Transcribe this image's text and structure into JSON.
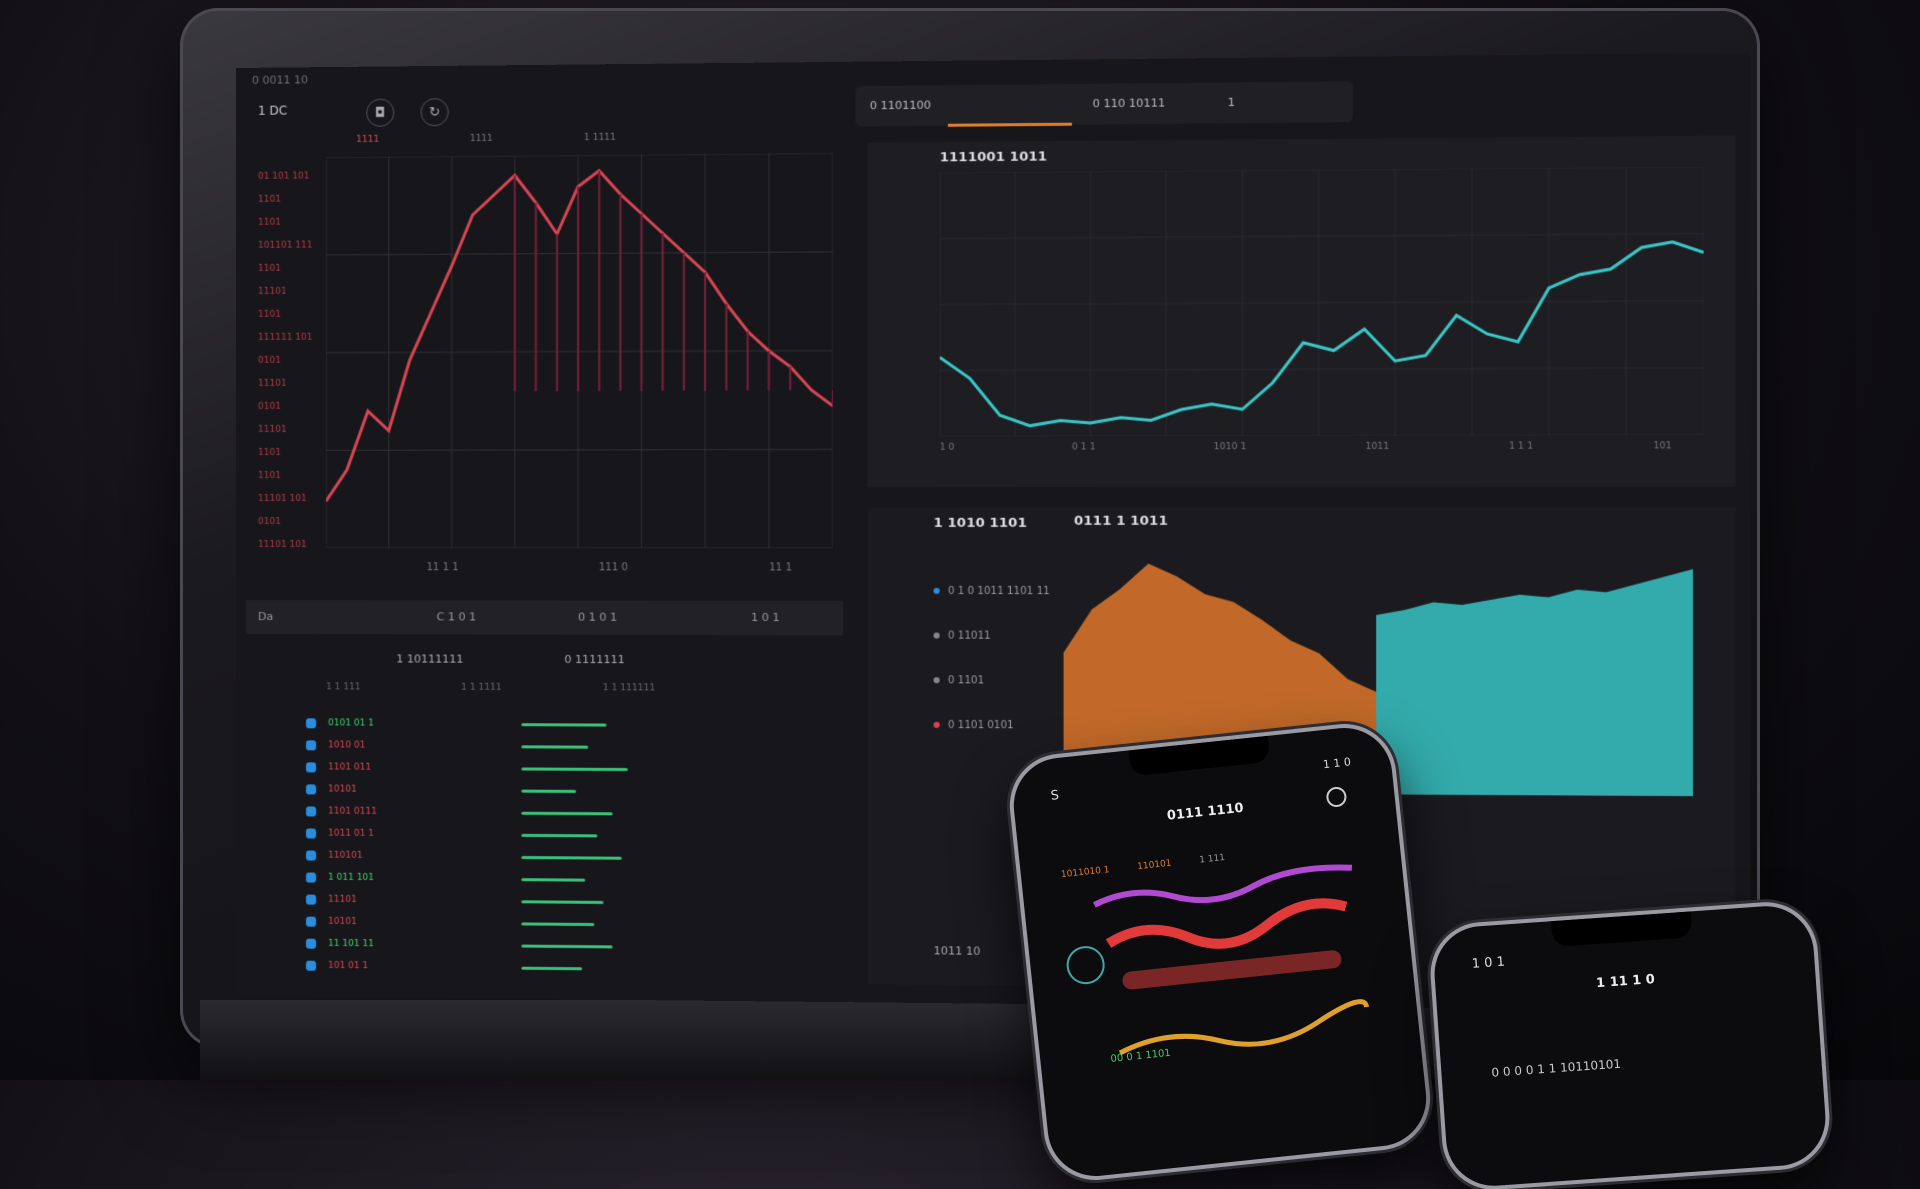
{
  "colors": {
    "red": "#d64651",
    "teal": "#38c6c6",
    "orange": "#e0782c",
    "green": "#3fcf6a",
    "blue": "#2a8ee0"
  },
  "laptop": {
    "topbar": "0 0011 10",
    "left_panel": {
      "title": "1 DC",
      "series_labels": [
        "1111",
        "1111",
        "1 1111"
      ],
      "y_labels": [
        "01 101 101",
        "1101",
        "1101",
        "101101 111",
        "1101",
        "11101",
        "1101",
        "111111 101",
        "0101",
        "11101",
        "0101",
        "11101",
        "1101",
        "1101",
        "11101 101",
        "0101",
        "11101 101"
      ],
      "x_labels": [
        "11 1 1",
        "111 0",
        "11 1"
      ],
      "tabs": [
        "Da",
        "C 1 0 1",
        "0 1 0 1",
        "1 0 1"
      ],
      "table_headings": [
        "1 10111111",
        "0 1111111"
      ],
      "table_subheads": [
        "1 1 111",
        "1 1 1111",
        "1 1 111111"
      ],
      "rows": [
        {
          "name": "0101 01 1",
          "color": "#3fcf6a",
          "bar": 0.28
        },
        {
          "name": "1010 01",
          "color": "#d64651",
          "bar": 0.22
        },
        {
          "name": "1101 011",
          "color": "#d64651",
          "bar": 0.35
        },
        {
          "name": "10101",
          "color": "#d64651",
          "bar": 0.18
        },
        {
          "name": "1101 0111",
          "color": "#d64651",
          "bar": 0.3
        },
        {
          "name": "1011 01 1",
          "color": "#d64651",
          "bar": 0.25
        },
        {
          "name": "110101",
          "color": "#d64651",
          "bar": 0.33
        },
        {
          "name": "1 011 101",
          "color": "#3fcf6a",
          "bar": 0.21
        },
        {
          "name": "11101",
          "color": "#d64651",
          "bar": 0.27
        },
        {
          "name": "10101",
          "color": "#d64651",
          "bar": 0.24
        },
        {
          "name": "11 101 11",
          "color": "#3fcf6a",
          "bar": 0.3
        },
        {
          "name": "101 01 1",
          "color": "#d64651",
          "bar": 0.2
        }
      ]
    },
    "right_panel": {
      "tabs": [
        "0 1101100",
        "0 110 10111",
        "1"
      ],
      "teal_title": "1111001 1011",
      "teal_x_labels": [
        "1 0",
        "0 1 1",
        "1010 1",
        "1011",
        "1 1 1",
        "101"
      ],
      "area_title_left": "1 1010 1101",
      "area_title_right": "0111 1 1011",
      "legend": [
        "0 1 0 1011 1101 11",
        "0 11011",
        "0 1101",
        "0 1101 0101"
      ],
      "footer": "1011 10"
    }
  },
  "phone1": {
    "status_left": "S",
    "status_right": "1 1 0",
    "title": "0111 1110",
    "tabs": [
      "1011010 1",
      "110101",
      "1 111"
    ],
    "green_label": "00 0 1 1101"
  },
  "phone2": {
    "status_left": "1 0 1",
    "title": "1 11 1 0",
    "bottom": "0 0 0 0 1 1 10110101"
  },
  "chart_data": [
    {
      "type": "line",
      "title": "",
      "xlabel": "",
      "ylabel": "",
      "series": [
        {
          "values": [
            12,
            20,
            35,
            30,
            48,
            60,
            72,
            85,
            90,
            95,
            88,
            80,
            92,
            96,
            90,
            85,
            80,
            75,
            70,
            62,
            55,
            50,
            46,
            40,
            36
          ]
        }
      ],
      "ylim": [
        0,
        100
      ]
    },
    {
      "type": "line",
      "title": "",
      "xlabel": "",
      "ylabel": "",
      "series": [
        {
          "values": [
            30,
            22,
            8,
            4,
            6,
            5,
            7,
            6,
            10,
            12,
            10,
            20,
            35,
            32,
            40,
            28,
            30,
            45,
            38,
            35,
            55,
            60,
            62,
            70,
            72,
            68
          ]
        }
      ],
      "ylim": [
        0,
        100
      ]
    },
    {
      "type": "area",
      "title": "",
      "series": [
        {
          "values": [
            55,
            72,
            80,
            90,
            85,
            78,
            75,
            68,
            60,
            55,
            45,
            40
          ]
        },
        {
          "values": [
            70,
            72,
            75,
            74,
            76,
            78,
            77,
            80,
            79,
            82,
            85,
            88
          ]
        }
      ],
      "ylim": [
        0,
        100
      ]
    }
  ]
}
